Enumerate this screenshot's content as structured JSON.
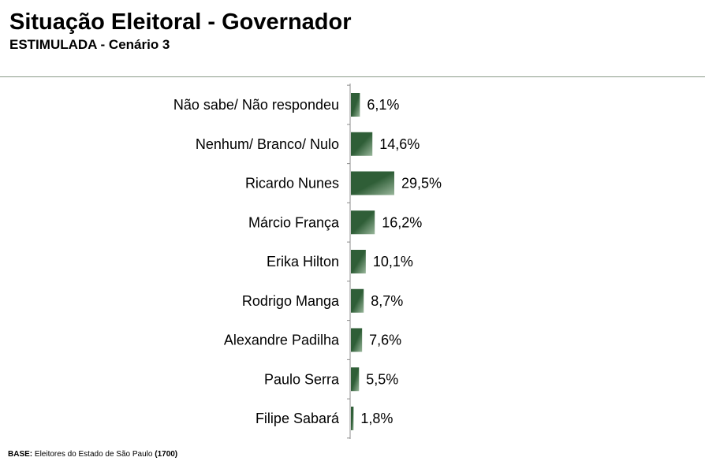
{
  "header": {
    "title": "Situação Eleitoral - Governador",
    "subtitle": "ESTIMULADA - Cenário 3"
  },
  "footer": {
    "base_label": "BASE:",
    "base_text": "Eleitores do Estado de São Paulo",
    "base_count": "(1700)"
  },
  "colors": {
    "bar_dark": "#2f5e37",
    "bar_light": "#9ab79c"
  },
  "chart_data": {
    "type": "bar",
    "orientation": "horizontal",
    "categories": [
      "Não sabe/ Não respondeu",
      "Nenhum/ Branco/ Nulo",
      "Ricardo Nunes",
      "Márcio França",
      "Erika Hilton",
      "Rodrigo Manga",
      "Alexandre Padilha",
      "Paulo Serra",
      "Filipe Sabará"
    ],
    "values": [
      6.1,
      14.6,
      29.5,
      16.2,
      10.1,
      8.7,
      7.6,
      5.5,
      1.8
    ],
    "value_labels": [
      "6,1%",
      "14,6%",
      "29,5%",
      "16,2%",
      "10,1%",
      "8,7%",
      "7,6%",
      "5,5%",
      "1,8%"
    ],
    "xlim": [
      0,
      100
    ],
    "grid": false,
    "legend": "none"
  }
}
